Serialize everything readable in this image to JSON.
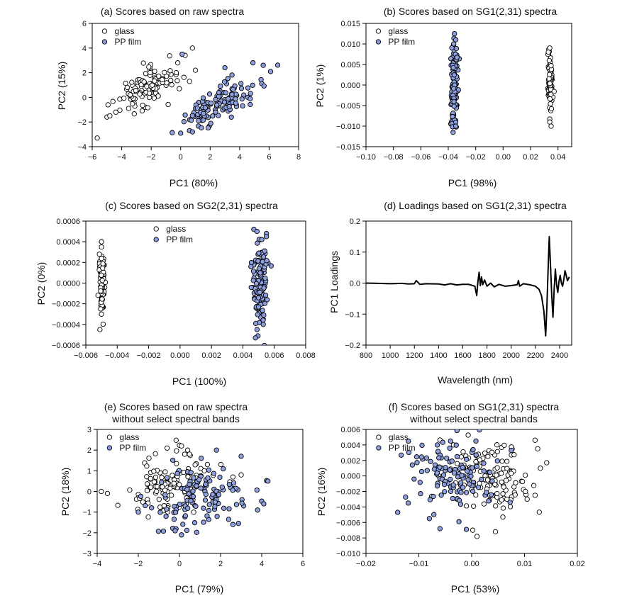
{
  "chart_data": [
    {
      "id": "a",
      "type": "scatter",
      "title": "(a) Scores based on raw spectra",
      "xlabel": "PC1 (80%)",
      "ylabel": "PC2 (15%)",
      "xlim": [
        -6,
        8
      ],
      "ylim": [
        -4,
        6
      ],
      "xticks": [
        -6,
        -4,
        -2,
        0,
        2,
        4,
        6,
        8
      ],
      "yticks": [
        -4,
        -2,
        0,
        2,
        4,
        6
      ],
      "tick_decimals": 0,
      "legend": {
        "position": "top-left",
        "items": [
          "glass",
          "PP film"
        ]
      },
      "series": [
        {
          "name": "glass",
          "style": "open",
          "clusters": [
            {
              "cx": -2.4,
              "cy": 0.6,
              "sx": 1.0,
              "sy": 0.95,
              "corr": 0.6,
              "n": 110
            }
          ],
          "extra": [
            [
              -5.0,
              -1.6
            ],
            [
              -4.8,
              -1.5
            ],
            [
              -4.4,
              -1.2
            ],
            [
              0.8,
              4.0
            ],
            [
              0.3,
              3.4
            ],
            [
              -0.2,
              2.8
            ],
            [
              1.0,
              2.2
            ],
            [
              0.6,
              1.3
            ],
            [
              -0.3,
              2.0
            ]
          ]
        },
        {
          "name": "PP film",
          "style": "filled",
          "clusters": [
            {
              "cx": 2.6,
              "cy": -0.5,
              "sx": 1.3,
              "sy": 1.05,
              "corr": 0.72,
              "n": 120
            }
          ],
          "extra": [
            [
              0.0,
              -2.9
            ],
            [
              0.6,
              -2.7
            ],
            [
              0.8,
              -2.8
            ],
            [
              5.6,
              2.6
            ],
            [
              6.1,
              2.1
            ],
            [
              4.9,
              2.8
            ],
            [
              3.0,
              2.4
            ],
            [
              0.1,
              3.5
            ]
          ]
        }
      ]
    },
    {
      "id": "b",
      "type": "scatter",
      "title": "(b) Scores based on SG1(2,31) spectra",
      "xlabel": "PC1 (98%)",
      "ylabel": "PC2 (1%)",
      "xlim": [
        -0.1,
        0.05
      ],
      "ylim": [
        -0.015,
        0.015
      ],
      "xticks": [
        -0.1,
        -0.08,
        -0.06,
        -0.04,
        -0.02,
        0.0,
        0.02,
        0.04
      ],
      "yticks": [
        -0.015,
        -0.01,
        -0.005,
        0.0,
        0.005,
        0.01,
        0.015
      ],
      "tick_decimals": 3,
      "x_tick_decimals": 2,
      "legend": {
        "position": "top-left",
        "items": [
          "glass",
          "PP film"
        ]
      },
      "series": [
        {
          "name": "glass",
          "style": "open",
          "clusters": [
            {
              "cx": 0.0345,
              "cy": 0.0,
              "sx": 0.0008,
              "sy": 0.0035,
              "corr": 0,
              "n": 100
            }
          ],
          "extra": [
            [
              0.034,
              0.009
            ],
            [
              0.033,
              0.008
            ],
            [
              0.034,
              -0.009
            ],
            [
              0.035,
              -0.01
            ]
          ]
        },
        {
          "name": "PP film",
          "style": "filled",
          "clusters": [
            {
              "cx": -0.0355,
              "cy": 0.0,
              "sx": 0.0012,
              "sy": 0.0045,
              "corr": 0,
              "n": 130
            }
          ],
          "extra": [
            [
              -0.0355,
              0.0125
            ],
            [
              -0.0345,
              0.011
            ],
            [
              -0.0365,
              -0.0115
            ],
            [
              -0.0345,
              -0.01
            ],
            [
              -0.036,
              0.01
            ]
          ]
        }
      ]
    },
    {
      "id": "c",
      "type": "scatter",
      "title": "(c) Scores based on SG2(2,31) spectra",
      "xlabel": "PC1 (100%)",
      "ylabel": "PC2 (0%)",
      "xlim": [
        -0.006,
        0.008
      ],
      "ylim": [
        -0.0006,
        0.0006
      ],
      "xticks": [
        -0.006,
        -0.004,
        -0.002,
        0.0,
        0.002,
        0.004,
        0.006,
        0.008
      ],
      "yticks": [
        -0.0006,
        -0.0004,
        -0.0002,
        0.0,
        0.0002,
        0.0004,
        0.0006
      ],
      "tick_decimals": 4,
      "x_tick_decimals": 3,
      "legend": {
        "position": "top-center",
        "items": [
          "glass",
          "PP film"
        ]
      },
      "series": [
        {
          "name": "glass",
          "style": "open",
          "clusters": [
            {
              "cx": -0.00497,
              "cy": 0.0,
              "sx": 8e-05,
              "sy": 0.00013,
              "corr": 0,
              "n": 100
            }
          ],
          "extra": [
            [
              -0.005,
              0.0004
            ],
            [
              -0.005,
              0.00035
            ],
            [
              -0.0051,
              -0.00045
            ],
            [
              -0.005,
              -0.0003
            ]
          ]
        },
        {
          "name": "PP film",
          "style": "filled",
          "clusters": [
            {
              "cx": 0.00508,
              "cy": 0.0,
              "sx": 0.00022,
              "sy": 0.00018,
              "corr": 0,
              "n": 130
            }
          ],
          "extra": [
            [
              0.0047,
              0.00052
            ],
            [
              0.0049,
              0.0005
            ],
            [
              0.0055,
              0.00048
            ],
            [
              0.0055,
              0.00045
            ],
            [
              0.0048,
              -0.00053
            ],
            [
              0.0049,
              -0.00045
            ],
            [
              0.0053,
              -0.0004
            ]
          ]
        }
      ]
    },
    {
      "id": "d",
      "type": "line",
      "title": "(d) Loadings based on SG1(2,31) spectra",
      "xlabel": "Wavelength (nm)",
      "ylabel": "PC1 Loadings",
      "xlim": [
        800,
        2500
      ],
      "ylim": [
        -0.2,
        0.2
      ],
      "xticks": [
        800,
        1000,
        1200,
        1400,
        1600,
        1800,
        2000,
        2200,
        2400
      ],
      "yticks": [
        -0.2,
        -0.1,
        0.0,
        0.1,
        0.2
      ],
      "tick_decimals": 1,
      "x_tick_decimals": 0,
      "series": [
        {
          "name": "PC1 loadings",
          "x": [
            800,
            900,
            1000,
            1100,
            1150,
            1200,
            1215,
            1230,
            1245,
            1300,
            1400,
            1450,
            1500,
            1550,
            1600,
            1650,
            1700,
            1715,
            1725,
            1735,
            1745,
            1755,
            1765,
            1780,
            1800,
            1830,
            1860,
            1900,
            1950,
            2000,
            2050,
            2060,
            2070,
            2100,
            2150,
            2200,
            2230,
            2250,
            2270,
            2285,
            2295,
            2305,
            2315,
            2325,
            2335,
            2345,
            2355,
            2365,
            2375,
            2385,
            2395,
            2405,
            2415,
            2425,
            2435,
            2445,
            2455,
            2465,
            2475,
            2480
          ],
          "y": [
            0.0,
            -0.001,
            -0.002,
            -0.001,
            -0.003,
            -0.002,
            0.008,
            0.002,
            -0.004,
            -0.002,
            -0.003,
            -0.006,
            -0.002,
            -0.006,
            -0.004,
            -0.004,
            -0.01,
            -0.04,
            0.005,
            0.035,
            -0.008,
            0.02,
            -0.005,
            0.01,
            -0.01,
            0.0,
            -0.012,
            -0.004,
            -0.01,
            -0.008,
            -0.005,
            0.008,
            -0.01,
            -0.002,
            -0.005,
            -0.01,
            -0.02,
            -0.04,
            -0.09,
            -0.17,
            -0.08,
            0.04,
            0.15,
            0.06,
            -0.04,
            -0.11,
            -0.02,
            0.045,
            -0.005,
            -0.03,
            0.005,
            0.025,
            0.0,
            -0.01,
            0.012,
            0.04,
            0.025,
            0.008,
            0.015,
            0.02
          ]
        }
      ]
    },
    {
      "id": "e",
      "type": "scatter",
      "title": "(e) Scores based on raw spectra",
      "title2": "without select spectral bands",
      "xlabel": "PC1 (79%)",
      "ylabel": "PC2 (18%)",
      "xlim": [
        -4,
        6
      ],
      "ylim": [
        -3,
        3
      ],
      "xticks": [
        -4,
        -2,
        0,
        2,
        4,
        6
      ],
      "yticks": [
        -3,
        -2,
        -1,
        0,
        1,
        2,
        3
      ],
      "tick_decimals": 0,
      "legend": {
        "position": "top-left",
        "items": [
          "glass",
          "PP film"
        ]
      },
      "series": [
        {
          "name": "glass",
          "style": "open",
          "clusters": [
            {
              "cx": -0.4,
              "cy": 0.3,
              "sx": 1.1,
              "sy": 0.75,
              "corr": 0.15,
              "n": 120
            }
          ],
          "extra": [
            [
              0.1,
              2.2
            ],
            [
              0.4,
              2.0
            ],
            [
              -0.6,
              2.1
            ],
            [
              3.0,
              0.8
            ],
            [
              -3.8,
              0.0
            ],
            [
              -3.5,
              -0.1
            ],
            [
              2.6,
              0.7
            ]
          ]
        },
        {
          "name": "PP film",
          "style": "filled",
          "clusters": [
            {
              "cx": 0.9,
              "cy": -0.4,
              "sx": 1.15,
              "sy": 0.75,
              "corr": 0.15,
              "n": 120
            }
          ],
          "extra": [
            [
              0.1,
              -2.1
            ],
            [
              4.3,
              0.5
            ],
            [
              4.1,
              -0.6
            ],
            [
              3.8,
              -0.9
            ],
            [
              3.0,
              1.7
            ],
            [
              1.8,
              2.0
            ],
            [
              -2.0,
              -1.0
            ],
            [
              2.6,
              -1.6
            ]
          ]
        }
      ]
    },
    {
      "id": "f",
      "type": "scatter",
      "title": "(f) Scores based on SG1(2,31) spectra",
      "title2": "without select spectral bands",
      "xlabel": "PC1 (53%)",
      "ylabel": "PC2 (16%)",
      "xlim": [
        -0.02,
        0.02
      ],
      "ylim": [
        -0.01,
        0.006
      ],
      "xticks": [
        -0.02,
        -0.01,
        0.0,
        0.01,
        0.02
      ],
      "yticks": [
        -0.01,
        -0.008,
        -0.006,
        -0.004,
        -0.002,
        0.0,
        0.002,
        0.004,
        0.006
      ],
      "tick_decimals": 3,
      "x_tick_decimals": 2,
      "legend": {
        "position": "top-left",
        "items": [
          "glass",
          "PP film"
        ]
      },
      "series": [
        {
          "name": "glass",
          "style": "open",
          "clusters": [
            {
              "cx": 0.003,
              "cy": 0.0,
              "sx": 0.0042,
              "sy": 0.0023,
              "corr": -0.25,
              "n": 120
            }
          ],
          "extra": [
            [
              0.012,
              0.0046
            ],
            [
              0.0125,
              0.0035
            ],
            [
              0.013,
              0.001
            ],
            [
              0.0142,
              0.0017
            ],
            [
              0.0105,
              -0.003
            ],
            [
              0.012,
              -0.0025
            ],
            [
              0.001,
              -0.0078
            ],
            [
              0.0045,
              -0.0072
            ],
            [
              0.0002,
              -0.007
            ]
          ]
        },
        {
          "name": "PP film",
          "style": "filled",
          "clusters": [
            {
              "cx": -0.0035,
              "cy": 0.0005,
              "sx": 0.0042,
              "sy": 0.0025,
              "corr": -0.3,
              "n": 120
            }
          ],
          "extra": [
            [
              -0.014,
              -0.0047
            ],
            [
              -0.012,
              -0.0035
            ],
            [
              -0.008,
              -0.0055
            ],
            [
              -0.006,
              -0.0068
            ],
            [
              -0.001,
              -0.0069
            ],
            [
              -0.0065,
              0.004
            ],
            [
              -0.004,
              0.0045
            ],
            [
              0.0008,
              0.0045
            ],
            [
              0.0075,
              0.0033
            ]
          ]
        }
      ]
    }
  ]
}
